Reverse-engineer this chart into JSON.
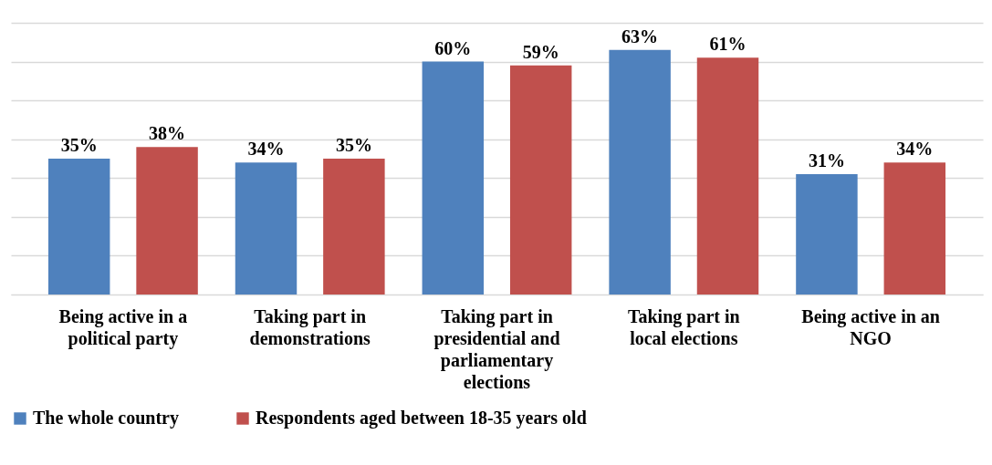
{
  "chart_data": {
    "type": "bar",
    "categories": [
      "Being active in a political party",
      "Taking part in demonstrations",
      "Taking part in presidential and parliamentary elections",
      "Taking part in local elections",
      "Being active in an NGO"
    ],
    "series": [
      {
        "name": "The whole country",
        "color": "#4f81bd",
        "values": [
          35,
          34,
          60,
          63,
          31
        ],
        "value_labels": [
          "35%",
          "34%",
          "60%",
          "63%",
          "31%"
        ]
      },
      {
        "name": "Respondents aged between 18-35 years old",
        "color": "#c0504d",
        "values": [
          38,
          35,
          59,
          61,
          34
        ],
        "value_labels": [
          "38%",
          "35%",
          "59%",
          "61%",
          "34%"
        ]
      }
    ],
    "ylim": [
      0,
      70
    ],
    "yticks": [
      {
        "value": 0,
        "label": null
      },
      {
        "value": 10,
        "label": null
      },
      {
        "value": 20,
        "label": null
      },
      {
        "value": 30,
        "label": null
      },
      {
        "value": 40,
        "label": null
      },
      {
        "value": 50,
        "label": null
      },
      {
        "value": 60,
        "label": null
      },
      {
        "value": 70,
        "label": null
      }
    ],
    "grid": "y",
    "legend": "bottom",
    "tick_labels": "x"
  }
}
